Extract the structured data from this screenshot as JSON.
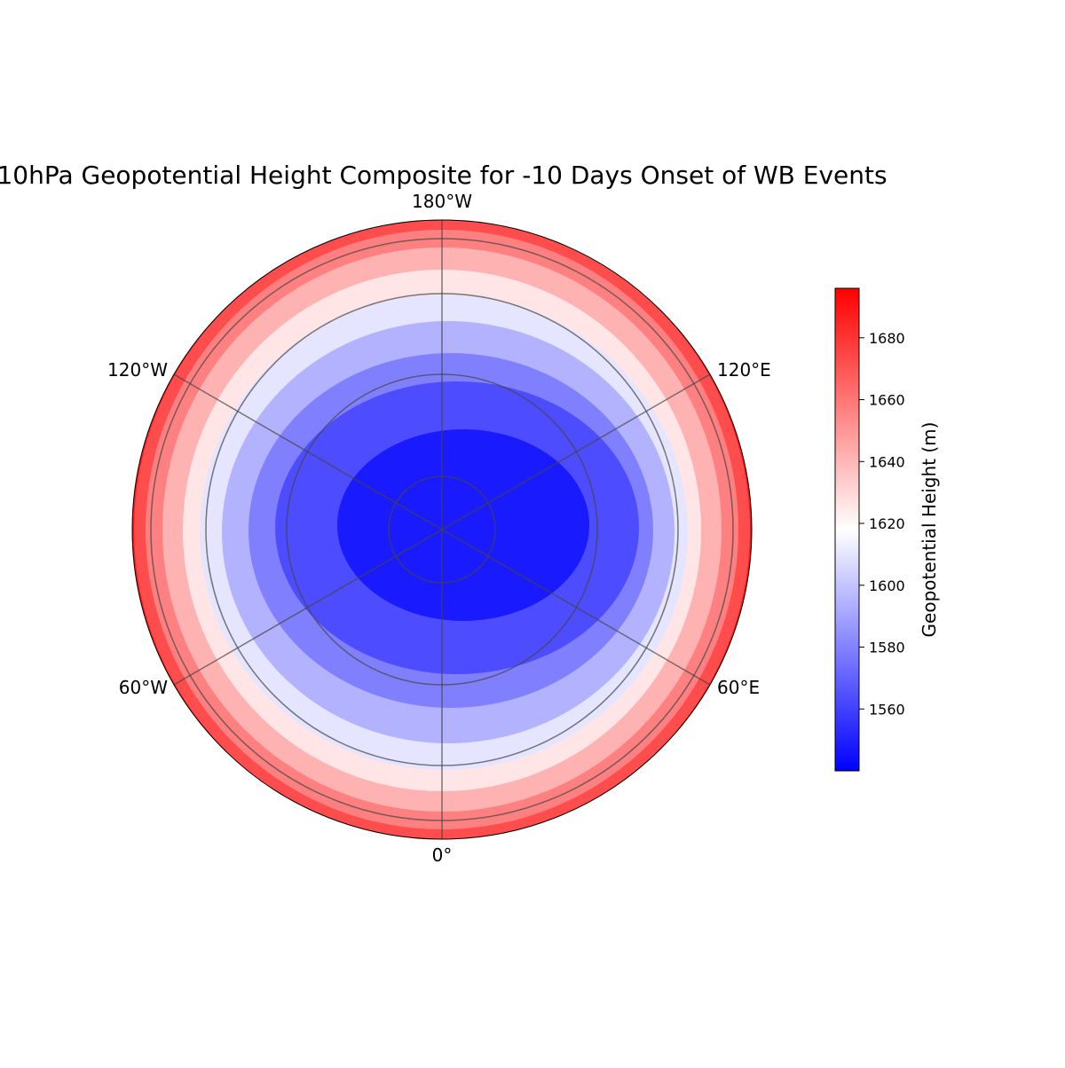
{
  "chart_data": {
    "type": "contourf",
    "title": "10hPa Geopotential Height Composite for -10 Days Onset of WB Events",
    "colormap": "bwr",
    "levels": [
      1540,
      1556,
      1571,
      1587,
      1602,
      1618,
      1634,
      1649,
      1665,
      1680,
      1696
    ],
    "meridian_labels": [
      "180°W",
      "120°W",
      "120°E",
      "60°W",
      "60°E",
      "0°"
    ],
    "colorbar": {
      "label": "Geopotential Height (m)",
      "lim": [
        1540,
        1696
      ],
      "ticks": [
        1560,
        1580,
        1600,
        1620,
        1640,
        1660,
        1680
      ]
    }
  }
}
